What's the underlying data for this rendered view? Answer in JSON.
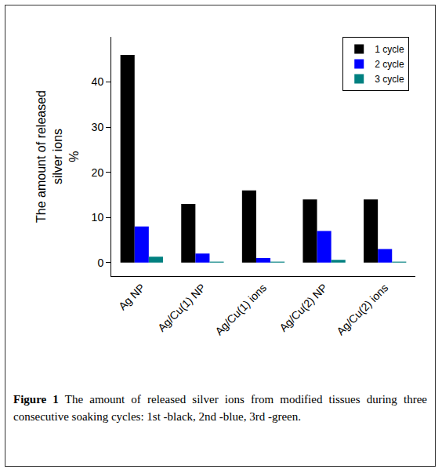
{
  "chart_data": {
    "type": "bar",
    "categories": [
      "Ag NP",
      "Ag/Cu(1) NP",
      "Ag/Cu(1) ions",
      "Ag/Cu(2) NP",
      "Ag/Cu(2) ions"
    ],
    "series": [
      {
        "name": "1 cycle",
        "color": "#000000",
        "values": [
          46,
          13,
          16,
          14,
          14
        ]
      },
      {
        "name": "2 cycle",
        "color": "#0000ff",
        "values": [
          8,
          2,
          1,
          7,
          3
        ]
      },
      {
        "name": "3 cycle",
        "color": "#008080",
        "values": [
          1.3,
          0.2,
          0.2,
          0.6,
          0.2
        ]
      }
    ],
    "ylabel": [
      "The amount of released",
      "silver ions",
      "%"
    ],
    "ylim": [
      -3,
      50
    ],
    "yticks": [
      0,
      10,
      20,
      30,
      40
    ],
    "grid": false,
    "legend": "upper right",
    "caption": {
      "label": "Figure 1",
      "text": "The amount of released silver ions from modified tissues during three consecutive soaking cycles: 1st -black, 2nd -blue, 3rd -green."
    }
  }
}
